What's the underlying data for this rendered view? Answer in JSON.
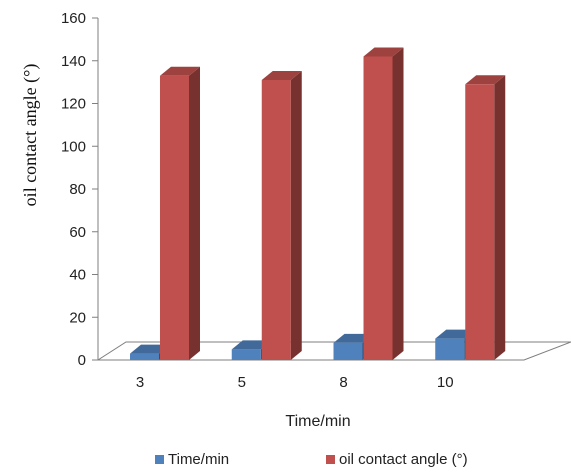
{
  "chart_data": {
    "type": "bar",
    "categories": [
      "3",
      "5",
      "8",
      "10"
    ],
    "series": [
      {
        "name": "Time/min",
        "values": [
          3,
          5,
          8,
          10
        ],
        "color": "#4f81bd"
      },
      {
        "name": "oil contact angle  (°)",
        "values": [
          133,
          131,
          142,
          129
        ],
        "color": "#c0504d"
      }
    ],
    "xlabel": "Time/min",
    "ylabel": "oil contact angle  (°)",
    "ylim": [
      0,
      160
    ],
    "yticks": [
      "0",
      "20",
      "40",
      "60",
      "80",
      "100",
      "120",
      "140",
      "160"
    ],
    "legend_position": "bottom",
    "style": "3d-columns"
  }
}
